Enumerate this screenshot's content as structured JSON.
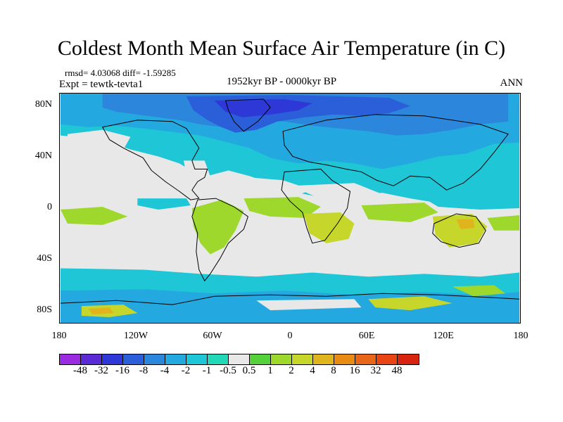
{
  "title": "Coldest Month Mean Surface Air Temperature (in C)",
  "stats": "rmsd= 4.03068 diff= -1.59285",
  "experiment": "Expt = tewtk-tevta1",
  "period": "1952kyr BP - 0000kyr BP",
  "season": "ANN",
  "y_ticks": [
    "80N",
    "40N",
    "0",
    "40S",
    "80S"
  ],
  "x_ticks": [
    "180",
    "120W",
    "60W",
    "0",
    "60E",
    "120E",
    "180"
  ],
  "colorbar": {
    "labels": [
      "-48",
      "-32",
      "-16",
      "-8",
      "-4",
      "-2",
      "-1",
      "-0.5",
      "0.5",
      "1",
      "2",
      "4",
      "8",
      "16",
      "32",
      "48"
    ],
    "colors": [
      "#9a2be0",
      "#5a2ad4",
      "#2e38d6",
      "#2a5fd9",
      "#2c86dc",
      "#24a8e0",
      "#1ec6d6",
      "#22d8b6",
      "#e8e8e8",
      "#55d23a",
      "#9fd82c",
      "#c6d62a",
      "#e0b41c",
      "#e88b14",
      "#e8661a",
      "#e84414",
      "#d72410"
    ]
  },
  "colors": {
    "neutral": "#e8e8e8",
    "cyan": "#1ec6d6",
    "teal": "#24a8e0",
    "blue": "#2c86dc",
    "deep_blue": "#2a5fd9",
    "darkest_blue": "#2e38d6",
    "green": "#9fd82c",
    "yellow_green": "#c6d62a",
    "gold": "#e0b41c",
    "coast": "#000000"
  }
}
